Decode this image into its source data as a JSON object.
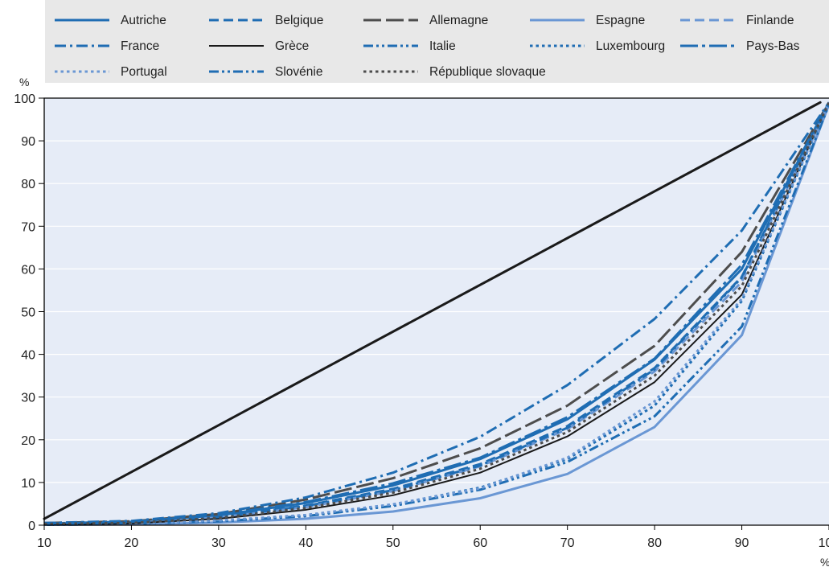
{
  "chart_data": {
    "type": "line",
    "title": "",
    "xlabel": "%",
    "ylabel": "%",
    "x": [
      10,
      20,
      30,
      40,
      50,
      60,
      70,
      80,
      90,
      100
    ],
    "xlim": [
      10,
      100
    ],
    "ylim": [
      0,
      100
    ],
    "xticks": [
      "10",
      "20",
      "30",
      "40",
      "50",
      "60",
      "70",
      "80",
      "90",
      "100"
    ],
    "yticks": [
      "0",
      "10",
      "20",
      "30",
      "40",
      "50",
      "60",
      "70",
      "80",
      "90",
      "100"
    ],
    "grid": "horizontal",
    "legend_position": "top",
    "colors": {
      "plot_background": "#e6ecf7",
      "legend_background": "#e8e8e8",
      "grid": "#ffffff",
      "blue": "#1f6db3",
      "gray": "#4d4d4d",
      "light_blue": "#6a97d4",
      "black": "#1a1a1a",
      "equality_line": "#1a1a1a"
    },
    "equality_line": {
      "x": [
        10,
        99
      ],
      "y": [
        1.5,
        99
      ]
    },
    "series": [
      {
        "name": "Autriche",
        "style": "solid",
        "color": "blue",
        "width": 3,
        "y": [
          0.4,
          0.8,
          2.3,
          5.2,
          9.3,
          15.5,
          24.8,
          38.8,
          60.0,
          99.0
        ]
      },
      {
        "name": "Belgique",
        "style": "dash",
        "color": "blue",
        "width": 3,
        "y": [
          0.3,
          0.6,
          2.0,
          4.6,
          8.5,
          14.3,
          23.2,
          36.8,
          58.2,
          99.0
        ]
      },
      {
        "name": "Allemagne",
        "style": "longdash",
        "color": "gray",
        "width": 3,
        "y": [
          0.5,
          0.9,
          2.6,
          6.0,
          11.0,
          18.0,
          28.0,
          42.0,
          64.0,
          99.0
        ]
      },
      {
        "name": "Espagne",
        "style": "solid",
        "color": "light_blue",
        "width": 3,
        "y": [
          0.1,
          0.2,
          0.6,
          1.5,
          3.2,
          6.3,
          12.0,
          23.0,
          44.5,
          98.5
        ]
      },
      {
        "name": "Finlande",
        "style": "dash",
        "color": "light_blue",
        "width": 3,
        "y": [
          0.3,
          0.5,
          1.8,
          4.2,
          8.0,
          13.8,
          22.5,
          36.0,
          57.0,
          99.0
        ]
      },
      {
        "name": "France",
        "style": "dashdot",
        "color": "blue",
        "width": 3,
        "y": [
          0.5,
          1.0,
          2.8,
          6.5,
          12.3,
          20.7,
          32.8,
          48.3,
          69.0,
          99.0
        ]
      },
      {
        "name": "Grèce",
        "style": "solid",
        "color": "black",
        "width": 2,
        "y": [
          0.2,
          0.4,
          1.5,
          3.6,
          7.0,
          12.3,
          20.8,
          33.5,
          54.0,
          99.0
        ]
      },
      {
        "name": "Italie",
        "style": "dashdotdot",
        "color": "blue",
        "width": 3,
        "y": [
          0.1,
          0.3,
          0.9,
          2.1,
          4.5,
          8.3,
          14.8,
          25.5,
          46.5,
          98.5
        ]
      },
      {
        "name": "Luxembourg",
        "style": "dot",
        "color": "blue",
        "width": 3,
        "y": [
          0.2,
          0.4,
          1.0,
          2.3,
          4.8,
          8.8,
          15.5,
          28.0,
          52.5,
          99.0
        ]
      },
      {
        "name": "Pays-Bas",
        "style": "longdashdot",
        "color": "blue",
        "width": 3,
        "y": [
          0.4,
          0.8,
          2.4,
          5.4,
          9.8,
          15.8,
          25.3,
          39.0,
          61.0,
          99.0
        ]
      },
      {
        "name": "Portugal",
        "style": "dot",
        "color": "light_blue",
        "width": 3,
        "y": [
          0.1,
          0.3,
          1.1,
          2.4,
          4.9,
          8.6,
          15.8,
          29.0,
          53.0,
          99.0
        ]
      },
      {
        "name": "Slovénie",
        "style": "dashdotdot",
        "color": "blue",
        "width": 3,
        "y": [
          0.3,
          0.6,
          1.9,
          4.5,
          8.2,
          14.0,
          22.8,
          36.5,
          58.0,
          99.0
        ]
      },
      {
        "name": "République slovaque",
        "style": "dot",
        "color": "gray",
        "width": 3,
        "y": [
          0.3,
          0.5,
          1.7,
          4.0,
          7.6,
          13.2,
          21.8,
          35.0,
          56.0,
          99.0
        ]
      }
    ]
  }
}
